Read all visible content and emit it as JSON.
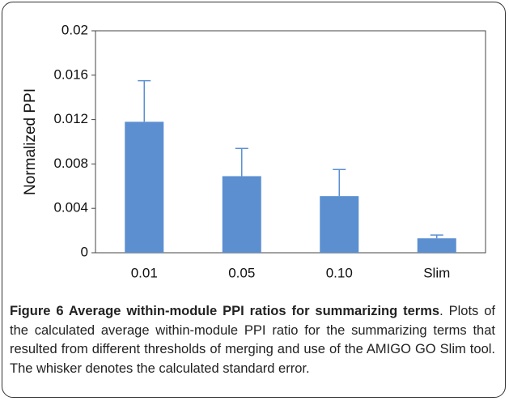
{
  "chart_data": {
    "type": "bar",
    "y_label": "Normalized PPI",
    "categories": [
      "0.01",
      "0.05",
      "0.10",
      "Slim"
    ],
    "values": [
      0.0118,
      0.0069,
      0.0051,
      0.0013
    ],
    "errors": [
      0.0037,
      0.0025,
      0.0024,
      0.0003
    ],
    "color": "#5b8fd0",
    "ylim": [
      0,
      0.02
    ],
    "yticks": [
      0,
      0.004,
      0.008,
      0.012,
      0.016,
      0.02
    ]
  },
  "caption": {
    "title": "Figure 6 Average within-module PPI ratios for summarizing terms",
    "text": ". Plots of the calculated average within-module PPI ratio for the summarizing terms that resulted from different thresholds of merging and use of the AMIGO GO Slim tool. The whisker denotes the calculated standard error."
  }
}
